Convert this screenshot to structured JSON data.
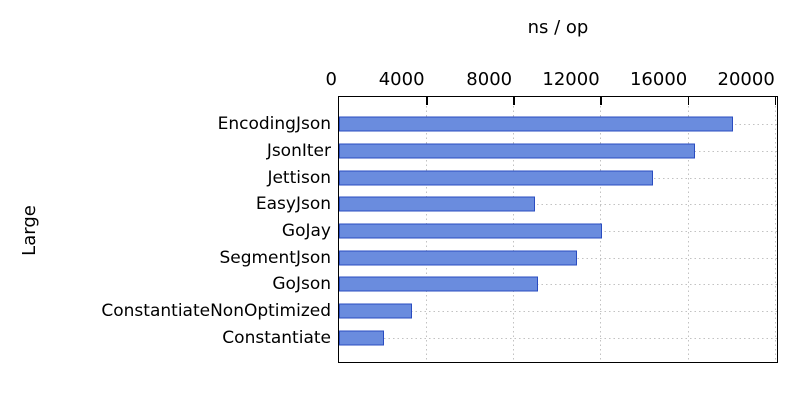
{
  "figure": {
    "title": "ns / op",
    "ylabel": "Large"
  },
  "chart_data": {
    "type": "bar",
    "orientation": "horizontal",
    "title": "ns / op",
    "xlabel": "ns / op",
    "ylabel": "Large",
    "categories": [
      "EncodingJson",
      "JsonIter",
      "Jettison",
      "EasyJson",
      "GoJay",
      "SegmentJson",
      "GoJson",
      "ConstantiateNonOptimized",
      "Constantiate"
    ],
    "values": [
      18060,
      16320,
      14420,
      8980,
      12090,
      10930,
      9140,
      3340,
      2060
    ],
    "xlim": [
      0,
      20100
    ],
    "xticks": [
      0,
      4000,
      8000,
      12000,
      16000,
      20000
    ],
    "xtick_labels": [
      "0",
      "4000",
      "8000",
      "12000",
      "16000",
      "20000"
    ],
    "axis_position": "top",
    "grid": "dotted",
    "legend": "none",
    "colors": {
      "bar_fill": "#6a8cde",
      "bar_border": "#2a4cc0",
      "gridline": "#c2c2c2",
      "axis": "#000000",
      "background": "#ffffff"
    }
  }
}
